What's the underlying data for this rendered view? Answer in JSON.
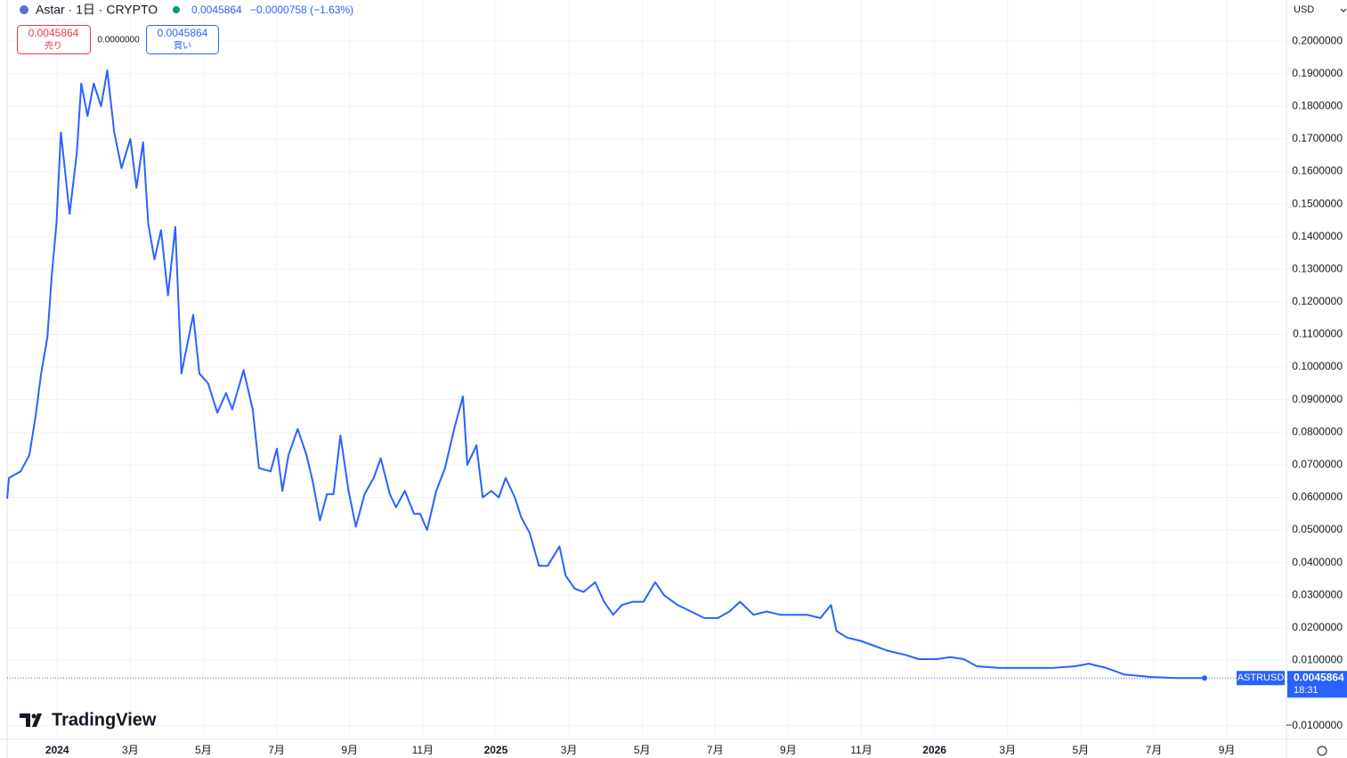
{
  "header": {
    "symbol": "Astar · 1日 · CRYPTO",
    "price": "0.0045864",
    "change": "−0.0000758 (−1.63%)"
  },
  "trade": {
    "sell_price": "0.0045864",
    "sell": "売り",
    "spread": "0.0000000",
    "buy_price": "0.0045864",
    "buy": "買い"
  },
  "currency": "USD",
  "logo": "TradingView",
  "price_tag": {
    "symbol": "ASTRUSD",
    "price": "0.0045864",
    "countdown": "18:31"
  },
  "chart_data": {
    "type": "line",
    "x": [
      -1.37,
      -1.32,
      -1.0,
      -0.76,
      -0.59,
      -0.44,
      -0.27,
      -0.15,
      -0.02,
      0.1,
      0.34,
      0.54,
      0.66,
      0.83,
      1.0,
      1.2,
      1.37,
      1.56,
      1.76,
      2.0,
      2.17,
      2.35,
      2.49,
      2.66,
      2.84,
      3.03,
      3.23,
      3.4,
      3.72,
      3.89,
      4.13,
      4.38,
      4.62,
      4.79,
      5.1,
      5.35,
      5.52,
      5.84,
      6.01,
      6.16,
      6.33,
      6.58,
      6.82,
      6.99,
      7.19,
      7.38,
      7.56,
      7.75,
      7.97,
      8.17,
      8.41,
      8.66,
      8.85,
      9.1,
      9.27,
      9.51,
      9.76,
      9.93,
      10.12,
      10.37,
      10.61,
      10.86,
      11.1,
      11.22,
      11.47,
      11.64,
      11.88,
      12.08,
      12.27,
      12.52,
      12.69,
      12.93,
      13.18,
      13.42,
      13.74,
      13.91,
      14.16,
      14.4,
      14.72,
      14.96,
      15.21,
      15.45,
      15.75,
      16.04,
      16.36,
      16.6,
      16.97,
      17.34,
      17.7,
      18.07,
      18.39,
      18.68,
      19.05,
      19.41,
      19.78,
      20.15,
      20.51,
      20.88,
      21.17,
      21.32,
      21.61,
      21.98,
      22.35,
      22.71,
      23.2,
      23.57,
      24.06,
      24.43,
      24.8,
      25.16,
      25.77,
      26.5,
      27.24,
      27.85,
      28.22,
      28.7,
      29.19,
      29.93,
      30.66,
      31.39
    ],
    "series": [
      {
        "name": "ASTRUSD",
        "color": "#2962ff",
        "values": [
          0.0596,
          0.066,
          0.068,
          0.073,
          0.085,
          0.098,
          0.109,
          0.128,
          0.144,
          0.172,
          0.147,
          0.166,
          0.187,
          0.177,
          0.187,
          0.18,
          0.191,
          0.172,
          0.161,
          0.17,
          0.155,
          0.169,
          0.144,
          0.133,
          0.142,
          0.122,
          0.143,
          0.098,
          0.116,
          0.098,
          0.095,
          0.086,
          0.092,
          0.087,
          0.099,
          0.087,
          0.069,
          0.068,
          0.075,
          0.062,
          0.073,
          0.081,
          0.073,
          0.065,
          0.053,
          0.061,
          0.061,
          0.079,
          0.062,
          0.051,
          0.061,
          0.066,
          0.072,
          0.061,
          0.057,
          0.062,
          0.055,
          0.055,
          0.05,
          0.062,
          0.069,
          0.081,
          0.091,
          0.07,
          0.076,
          0.06,
          0.062,
          0.06,
          0.066,
          0.06,
          0.054,
          0.049,
          0.039,
          0.039,
          0.045,
          0.036,
          0.032,
          0.031,
          0.034,
          0.028,
          0.024,
          0.027,
          0.028,
          0.028,
          0.034,
          0.03,
          0.027,
          0.025,
          0.023,
          0.023,
          0.025,
          0.028,
          0.024,
          0.025,
          0.024,
          0.024,
          0.024,
          0.023,
          0.027,
          0.019,
          0.017,
          0.016,
          0.0145,
          0.013,
          0.0117,
          0.0104,
          0.0104,
          0.011,
          0.0104,
          0.0082,
          0.0077,
          0.0077,
          0.0077,
          0.0082,
          0.009,
          0.0077,
          0.0057,
          0.0049,
          0.0046,
          0.0045864
        ]
      }
    ],
    "xlim": [
      -1.37,
      33.63
    ],
    "xticks": [
      {
        "value": 0,
        "label": "2024"
      },
      {
        "value": 2,
        "label": "3月"
      },
      {
        "value": 4,
        "label": "5月"
      },
      {
        "value": 6,
        "label": "7月"
      },
      {
        "value": 8,
        "label": "9月"
      },
      {
        "value": 10,
        "label": "11月"
      },
      {
        "value": 12,
        "label": "2025"
      },
      {
        "value": 14,
        "label": "3月"
      },
      {
        "value": 16,
        "label": "5月"
      },
      {
        "value": 18,
        "label": "7月"
      },
      {
        "value": 20,
        "label": "9月"
      },
      {
        "value": 22,
        "label": "11月"
      },
      {
        "value": 24,
        "label": "2026"
      },
      {
        "value": 26,
        "label": "3月"
      },
      {
        "value": 28,
        "label": "5月"
      },
      {
        "value": 30,
        "label": "7月"
      },
      {
        "value": 32,
        "label": "9月"
      }
    ],
    "ylim": [
      -0.0142,
      0.2126
    ],
    "yticks": [
      {
        "value": -0.01,
        "label": "−0.0100000"
      },
      {
        "value": 0.01,
        "label": "0.0100000"
      },
      {
        "value": 0.02,
        "label": "0.0200000"
      },
      {
        "value": 0.03,
        "label": "0.0300000"
      },
      {
        "value": 0.04,
        "label": "0.0400000"
      },
      {
        "value": 0.05,
        "label": "0.0500000"
      },
      {
        "value": 0.06,
        "label": "0.0600000"
      },
      {
        "value": 0.07,
        "label": "0.0700000"
      },
      {
        "value": 0.08,
        "label": "0.0800000"
      },
      {
        "value": 0.09,
        "label": "0.0900000"
      },
      {
        "value": 0.1,
        "label": "0.1000000"
      },
      {
        "value": 0.11,
        "label": "0.1100000"
      },
      {
        "value": 0.12,
        "label": "0.1200000"
      },
      {
        "value": 0.13,
        "label": "0.1300000"
      },
      {
        "value": 0.14,
        "label": "0.1400000"
      },
      {
        "value": 0.15,
        "label": "0.1500000"
      },
      {
        "value": 0.16,
        "label": "0.1600000"
      },
      {
        "value": 0.17,
        "label": "0.1700000"
      },
      {
        "value": 0.18,
        "label": "0.1800000"
      },
      {
        "value": 0.19,
        "label": "0.1900000"
      },
      {
        "value": 0.2,
        "label": "0.2000000"
      }
    ],
    "grid": true
  }
}
